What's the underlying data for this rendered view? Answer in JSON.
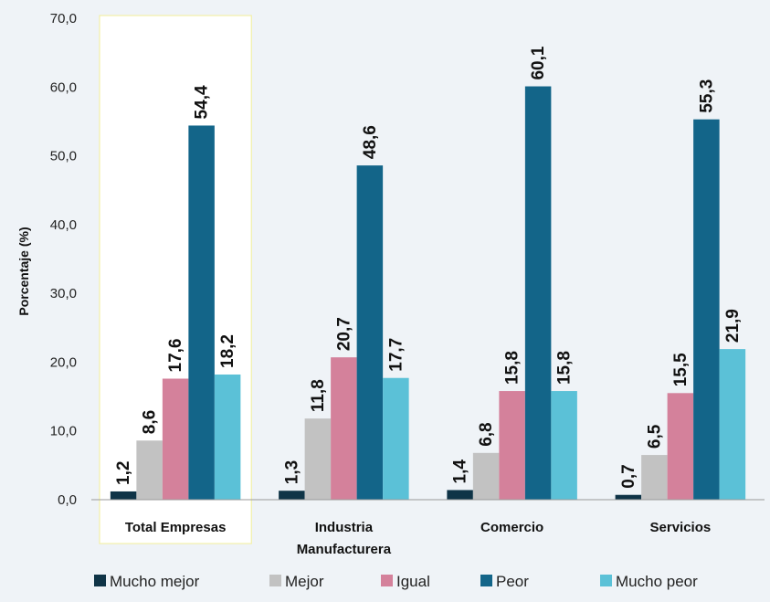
{
  "chart_data": {
    "type": "bar",
    "categories": [
      "Total Empresas",
      "Industria Manufacturera",
      "Comercio",
      "Servicios"
    ],
    "series": [
      {
        "name": "Mucho mejor",
        "color": "#0f3447",
        "values": [
          1.2,
          1.3,
          1.4,
          0.7
        ]
      },
      {
        "name": "Mejor",
        "color": "#c2c2c2",
        "values": [
          8.6,
          11.8,
          6.8,
          6.5
        ]
      },
      {
        "name": "Igual",
        "color": "#d4819b",
        "values": [
          17.6,
          20.7,
          15.8,
          15.5
        ]
      },
      {
        "name": "Peor",
        "color": "#136589",
        "values": [
          54.4,
          48.6,
          60.1,
          55.3
        ]
      },
      {
        "name": "Mucho peor",
        "color": "#5bc1d7",
        "values": [
          18.2,
          17.7,
          15.8,
          21.9
        ]
      }
    ],
    "data_labels": [
      [
        "1,2",
        "1,3",
        "1,4",
        "0,7"
      ],
      [
        "8,6",
        "11,8",
        "6,8",
        "6,5"
      ],
      [
        "17,6",
        "20,7",
        "15,8",
        "15,5"
      ],
      [
        "54,4",
        "48,6",
        "60,1",
        "55,3"
      ],
      [
        "18,2",
        "17,7",
        "15,8",
        "21,9"
      ]
    ],
    "ylabel": "Porcentaje (%)",
    "ylim": [
      0,
      70
    ],
    "yticks": [
      "0,0",
      "10,0",
      "20,0",
      "30,0",
      "40,0",
      "50,0",
      "60,0",
      "70,0"
    ],
    "grid": false,
    "legend_position": "bottom",
    "highlighted_category": "Total Empresas",
    "highlight_color": "#f2f0a8"
  }
}
